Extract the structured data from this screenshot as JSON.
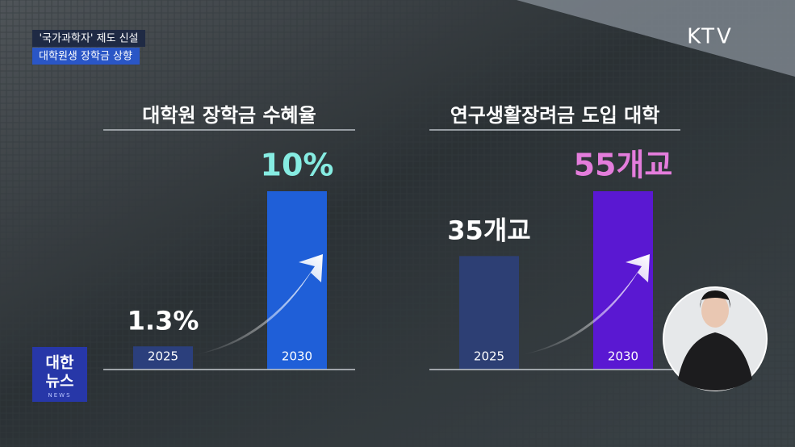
{
  "caption": {
    "line1": "'국가과학자' 제도 신설",
    "line2": "대학원생 장학금 상향"
  },
  "channel": "KTV",
  "program": {
    "line1": "대한",
    "line2": "뉴스",
    "line3": "NEWS"
  },
  "chart_data": [
    {
      "type": "bar",
      "title": "대학원 장학금 수혜율",
      "categories": [
        "2025",
        "2030"
      ],
      "values": [
        1.3,
        10
      ],
      "value_labels": [
        "1.3%",
        "10%"
      ],
      "colors": [
        "#2b3f7c",
        "#1f5fd8"
      ],
      "label_colors": [
        "#ffffff",
        "#86ece2"
      ]
    },
    {
      "type": "bar",
      "title": "연구생활장려금 도입 대학",
      "categories": [
        "2025",
        "2030"
      ],
      "values": [
        35,
        55
      ],
      "value_labels": [
        "35개교",
        "55개교"
      ],
      "colors": [
        "#2d3f74",
        "#5a18d2"
      ],
      "label_colors": [
        "#ffffff",
        "#e47ddc"
      ]
    }
  ]
}
